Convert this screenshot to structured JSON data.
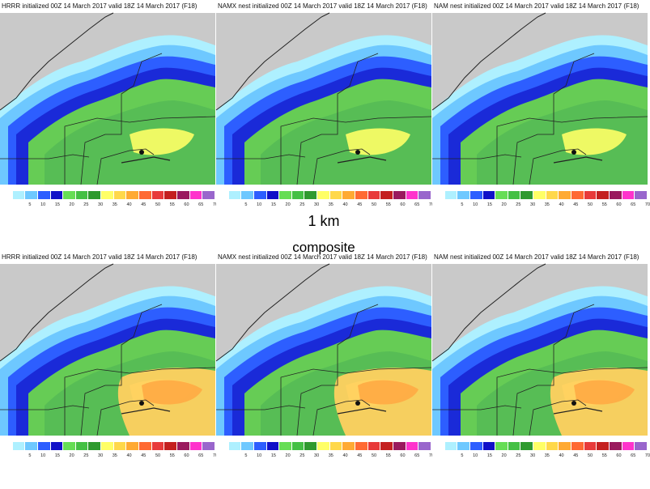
{
  "panels": [
    {
      "title": "HRRR initialized 00Z 14 March 2017 valid 18Z 14 March 2017 (F18)"
    },
    {
      "title": "NAMX nest initialized 00Z 14 March 2017 valid 18Z 14 March 2017 (F18)"
    },
    {
      "title": "NAM nest initialized 00Z 14 March 2017 valid 18Z 14 March 2017 (F18)"
    },
    {
      "title": "HRRR initialized 00Z 14 March 2017 valid 18Z 14 March 2017 (F18)"
    },
    {
      "title": "NAMX nest initialized 00Z 14 March 2017 valid 18Z 14 March 2017 (F18)"
    },
    {
      "title": "NAM nest initialized 00Z 14 March 2017 valid 18Z 14 March 2017 (F18)"
    }
  ],
  "row_labels": {
    "top": "1 km",
    "bottom": "composite"
  },
  "colorbar": {
    "ticks": [
      "5",
      "10",
      "15",
      "20",
      "25",
      "30",
      "35",
      "40",
      "45",
      "50",
      "55",
      "60",
      "65",
      "70"
    ],
    "colors": [
      "#ffffff",
      "#aef0ff",
      "#6ec8ff",
      "#2d5eff",
      "#1010c8",
      "#66dd55",
      "#44c044",
      "#2f9a2f",
      "#ffff66",
      "#ffd84a",
      "#ffaa33",
      "#ff6a33",
      "#e83a3a",
      "#c42020",
      "#9a1a5e",
      "#ff33cc",
      "#9966cc"
    ]
  }
}
